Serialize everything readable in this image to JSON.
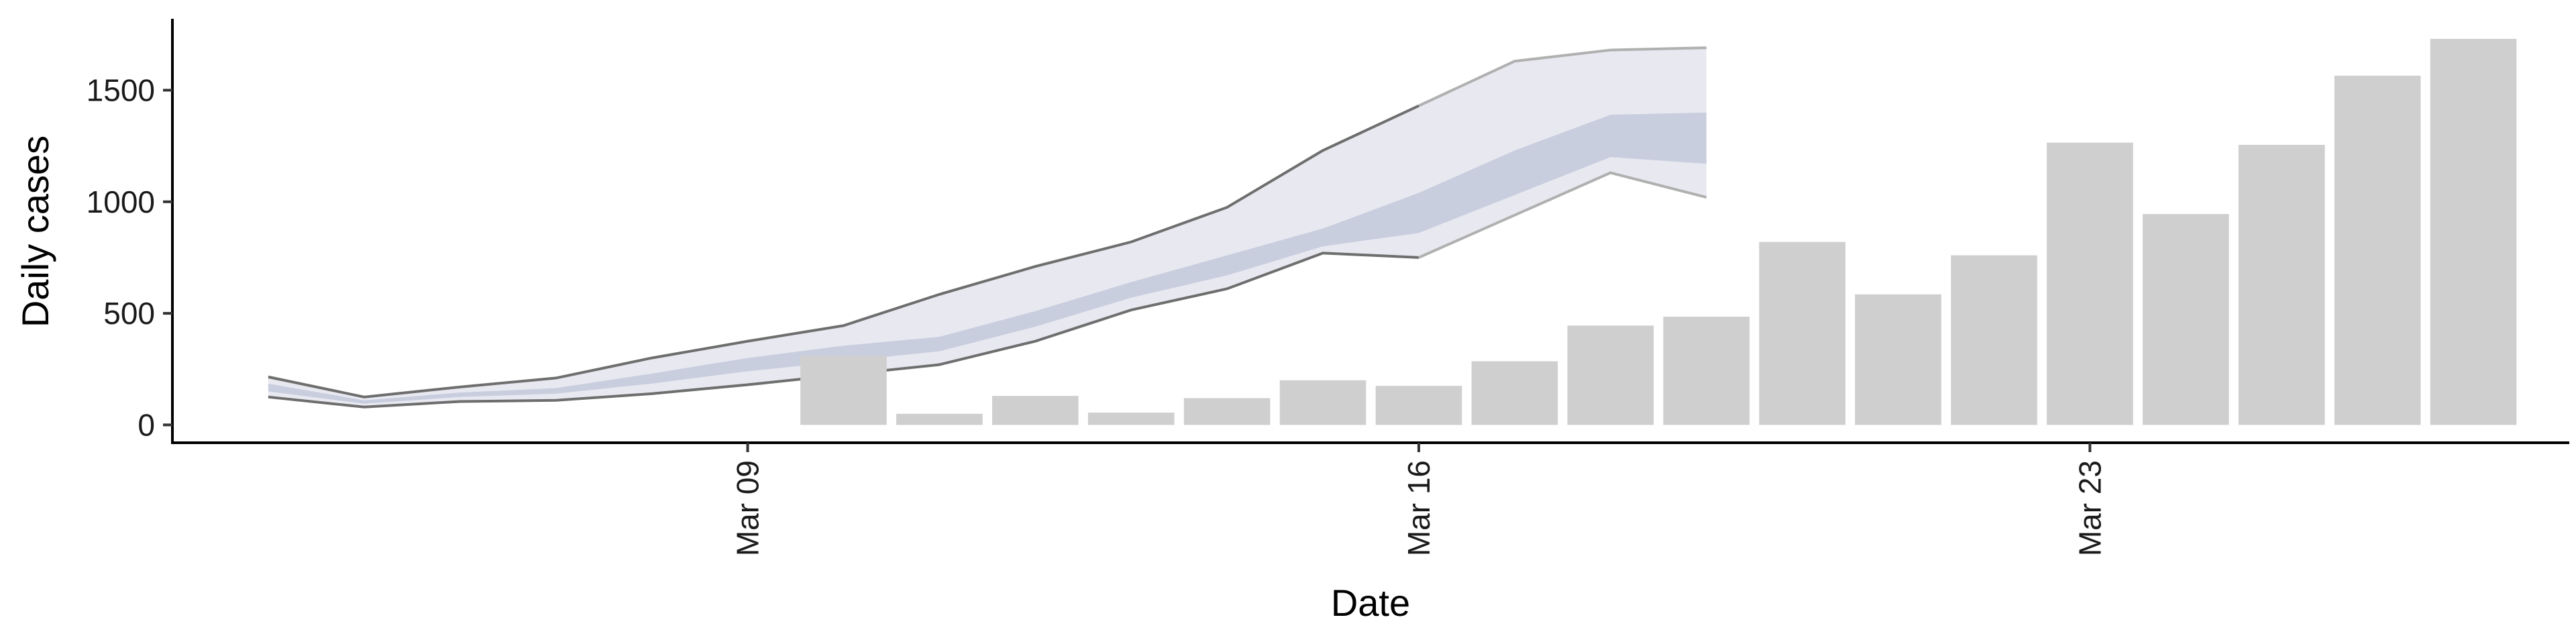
{
  "chart_data": {
    "type": "bar",
    "xlabel": "Date",
    "ylabel": "Daily cases",
    "ylim": [
      -80,
      1820
    ],
    "xlim": [
      "2020-03-03",
      "2020-03-28"
    ],
    "y_ticks": [
      0,
      500,
      1000,
      1500
    ],
    "y_tick_labels": [
      "0",
      "500",
      "1000",
      "1500"
    ],
    "x_ticks": [
      {
        "date": "2020-03-09",
        "label": "Mar 09"
      },
      {
        "date": "2020-03-16",
        "label": "Mar 16"
      },
      {
        "date": "2020-03-23",
        "label": "Mar 23"
      }
    ],
    "grid": false,
    "legend": "none",
    "bars": {
      "name": "Reported cases",
      "color": "#cfcfcf",
      "x": [
        "2020-03-10",
        "2020-03-11",
        "2020-03-12",
        "2020-03-13",
        "2020-03-14",
        "2020-03-15",
        "2020-03-16",
        "2020-03-17",
        "2020-03-18",
        "2020-03-19",
        "2020-03-20",
        "2020-03-21",
        "2020-03-22",
        "2020-03-23",
        "2020-03-24",
        "2020-03-25",
        "2020-03-26",
        "2020-03-27"
      ],
      "values": [
        310,
        50,
        130,
        55,
        120,
        200,
        175,
        285,
        445,
        485,
        820,
        585,
        760,
        1265,
        945,
        1255,
        1565,
        1730
      ]
    },
    "forecast": {
      "color_outer": "#e8e9f0",
      "color_inner": "#c9cedf",
      "color_line": "#6e6e6e",
      "color_line_upper_end": "#b0b0b0",
      "x": [
        "2020-03-04",
        "2020-03-05",
        "2020-03-06",
        "2020-03-07",
        "2020-03-08",
        "2020-03-09",
        "2020-03-10",
        "2020-03-11",
        "2020-03-12",
        "2020-03-13",
        "2020-03-14",
        "2020-03-15",
        "2020-03-16",
        "2020-03-17",
        "2020-03-18",
        "2020-03-19"
      ],
      "outer_lower": [
        125,
        80,
        105,
        110,
        140,
        180,
        225,
        270,
        375,
        515,
        610,
        770,
        750,
        940,
        1130,
        1020
      ],
      "outer_upper": [
        215,
        125,
        170,
        210,
        300,
        375,
        445,
        585,
        710,
        820,
        975,
        1230,
        1430,
        1630,
        1680,
        1690
      ],
      "inner_lower": [
        150,
        95,
        125,
        140,
        185,
        240,
        285,
        330,
        440,
        570,
        670,
        800,
        860,
        1030,
        1200,
        1170
      ],
      "inner_upper": [
        185,
        110,
        145,
        165,
        230,
        300,
        355,
        395,
        510,
        640,
        760,
        880,
        1040,
        1230,
        1390,
        1400
      ]
    }
  }
}
